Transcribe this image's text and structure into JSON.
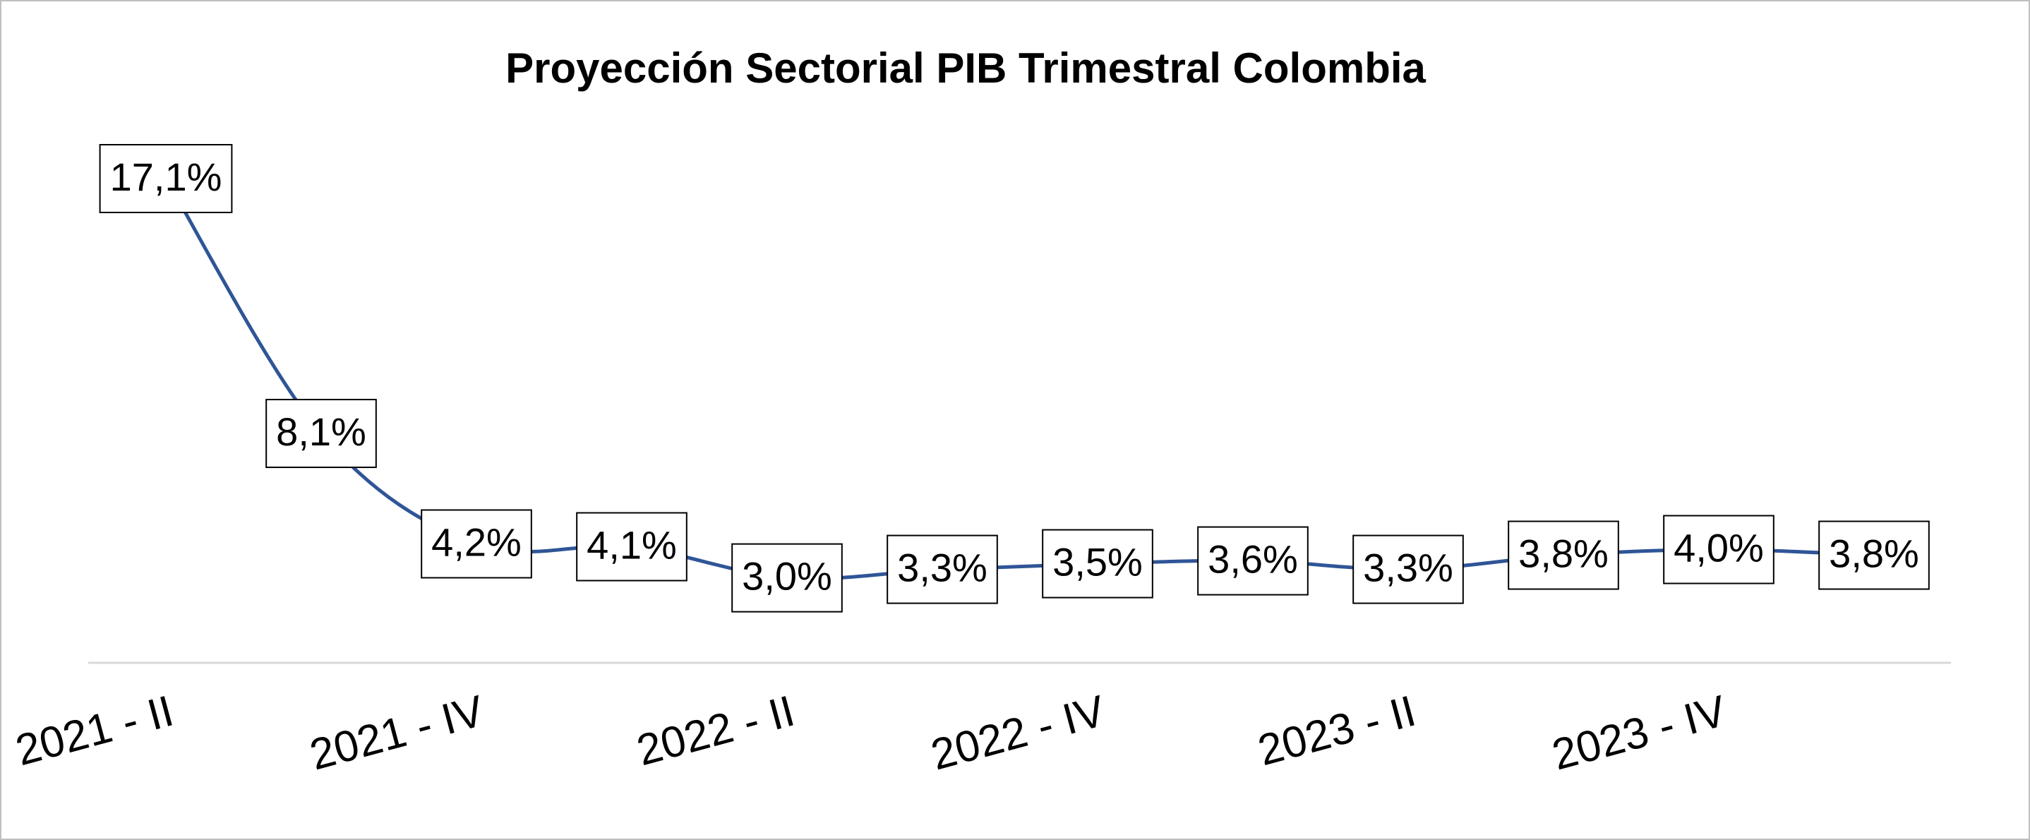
{
  "chart_data": {
    "type": "line",
    "title": "Proyección Sectorial PIB Trimestral Colombia",
    "categories": [
      "2021 - II",
      null,
      "2021 - IV",
      null,
      "2022 - II",
      null,
      "2022 - IV",
      null,
      "2023 - II",
      null,
      "2023 - IV",
      null
    ],
    "series": [
      {
        "color": "#2f5597",
        "values": [
          17.1,
          8.1,
          4.2,
          4.1,
          3.0,
          3.3,
          3.5,
          3.6,
          3.3,
          3.8,
          4.0,
          3.8
        ],
        "value_labels": [
          "17,1%",
          "8,1%",
          "4,2%",
          "4,1%",
          "3,0%",
          "3,3%",
          "3,5%",
          "3,6%",
          "3,3%",
          "3,8%",
          "4,0%",
          "3,8%"
        ]
      }
    ]
  }
}
